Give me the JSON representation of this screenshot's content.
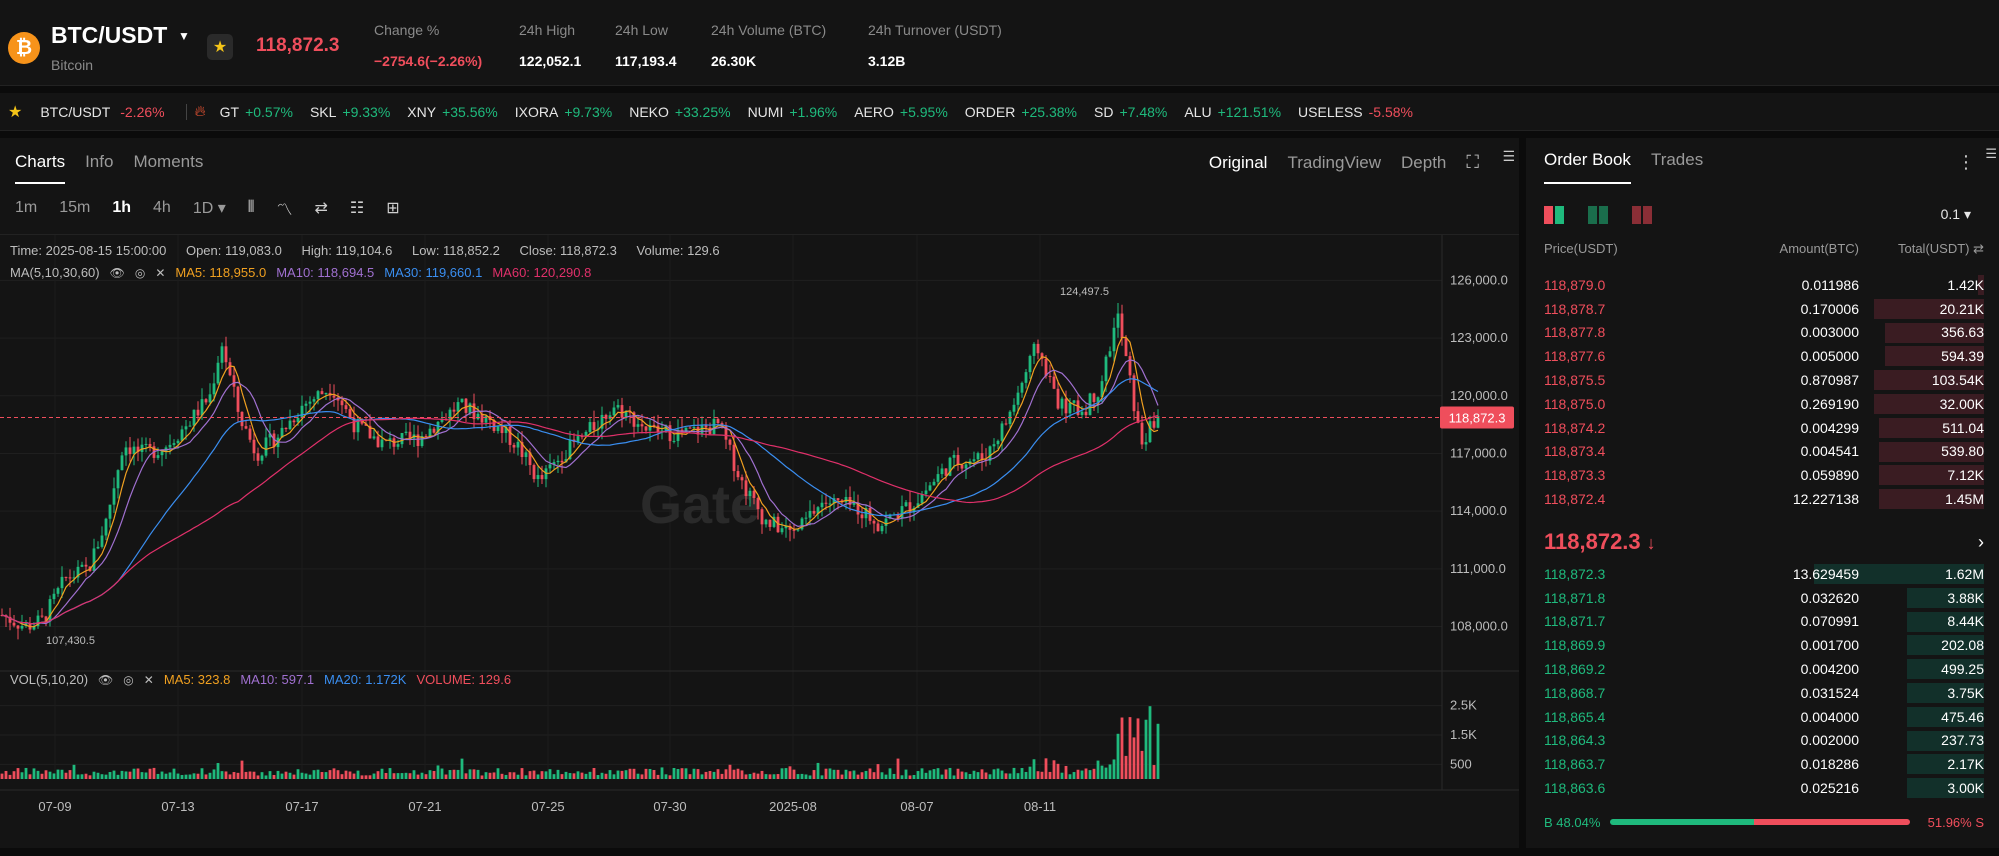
{
  "header": {
    "pair": "BTC/USDT",
    "coin_name": "Bitcoin",
    "coin_symbol": "₿",
    "last_price": "118,872.3",
    "stats": [
      {
        "label": "Change %",
        "value": "−2754.6(−2.26%)",
        "color": "#ef4e5c"
      },
      {
        "label": "24h High",
        "value": "122,052.1"
      },
      {
        "label": "24h Low",
        "value": "117,193.4"
      },
      {
        "label": "24h Volume (BTC)",
        "value": "26.30K"
      },
      {
        "label": "24h Turnover (USDT)",
        "value": "3.12B"
      }
    ]
  },
  "ticker": {
    "pinned": {
      "symbol": "BTC/USDT",
      "change": "-2.26%",
      "dir": "down"
    },
    "items": [
      {
        "symbol": "GT",
        "change": "+0.57%",
        "dir": "up"
      },
      {
        "symbol": "SKL",
        "change": "+9.33%",
        "dir": "up"
      },
      {
        "symbol": "XNY",
        "change": "+35.56%",
        "dir": "up"
      },
      {
        "symbol": "IXORA",
        "change": "+9.73%",
        "dir": "up"
      },
      {
        "symbol": "NEKO",
        "change": "+33.25%",
        "dir": "up"
      },
      {
        "symbol": "NUMI",
        "change": "+1.96%",
        "dir": "up"
      },
      {
        "symbol": "AERO",
        "change": "+5.95%",
        "dir": "up"
      },
      {
        "symbol": "ORDER",
        "change": "+25.38%",
        "dir": "up"
      },
      {
        "symbol": "SD",
        "change": "+7.48%",
        "dir": "up"
      },
      {
        "symbol": "ALU",
        "change": "+121.51%",
        "dir": "up"
      },
      {
        "symbol": "USELESS",
        "change": "-5.58%",
        "dir": "down"
      }
    ]
  },
  "chart_panel": {
    "tabs": [
      "Charts",
      "Info",
      "Moments"
    ],
    "active_tab": "Charts",
    "views": [
      "Original",
      "TradingView",
      "Depth"
    ],
    "active_view": "Original",
    "timeframes": [
      "1m",
      "15m",
      "1h",
      "4h",
      "1D ▾"
    ],
    "active_timeframe": "1h",
    "info": {
      "time": "Time: 2025-08-15 15:00:00",
      "open": "Open: 119,083.0",
      "high": "High: 119,104.6",
      "low": "Low: 118,852.2",
      "close": "Close: 118,872.3",
      "volume": "Volume: 129.6"
    },
    "ma_label": "MA(5,10,30,60)",
    "ma_values": [
      {
        "text": "MA5: 118,955.0",
        "color": "#f0a020"
      },
      {
        "text": "MA10: 118,694.5",
        "color": "#a070d0"
      },
      {
        "text": "MA30: 119,660.1",
        "color": "#3a8ef0"
      },
      {
        "text": "MA60: 120,290.8",
        "color": "#e0306a"
      }
    ],
    "vol_label": "VOL(5,10,20)",
    "vol_values": [
      {
        "text": "MA5: 323.8",
        "color": "#f0a020"
      },
      {
        "text": "MA10: 597.1",
        "color": "#a070d0"
      },
      {
        "text": "MA20: 1.172K",
        "color": "#3a8ef0"
      },
      {
        "text": "VOLUME: 129.6",
        "color": "#ef4e5c"
      }
    ],
    "watermark": "Gate"
  },
  "chart_data": {
    "type": "candlestick",
    "price_ticks": [
      "126,000.0",
      "123,000.0",
      "120,000.0",
      "117,000.0",
      "114,000.0",
      "111,000.0",
      "108,000.0"
    ],
    "price_tick_values": [
      126000,
      123000,
      120000,
      117000,
      114000,
      111000,
      108000
    ],
    "price_range": [
      106000,
      126800
    ],
    "volume_ticks": [
      "2.5K",
      "1.5K",
      "500"
    ],
    "volume_tick_values": [
      2500,
      1500,
      500
    ],
    "volume_range": [
      0,
      3200
    ],
    "x_ticks": [
      "07-09",
      "07-13",
      "07-17",
      "07-21",
      "07-25",
      "07-30",
      "2025-08",
      "08-07",
      "08-11"
    ],
    "current_price": "118,872.3",
    "current_price_value": 118872.3,
    "high_annotation": "124,497.5",
    "low_annotation": "107,430.5",
    "price_path": [
      {
        "x": 0.0,
        "p": 108600
      },
      {
        "x": 0.02,
        "p": 108000
      },
      {
        "x": 0.035,
        "p": 108300
      },
      {
        "x": 0.055,
        "p": 110500
      },
      {
        "x": 0.075,
        "p": 111000
      },
      {
        "x": 0.09,
        "p": 113500
      },
      {
        "x": 0.105,
        "p": 117500
      },
      {
        "x": 0.12,
        "p": 117000
      },
      {
        "x": 0.14,
        "p": 117300
      },
      {
        "x": 0.16,
        "p": 118500
      },
      {
        "x": 0.18,
        "p": 120000
      },
      {
        "x": 0.19,
        "p": 122800
      },
      {
        "x": 0.205,
        "p": 119000
      },
      {
        "x": 0.22,
        "p": 117000
      },
      {
        "x": 0.24,
        "p": 118000
      },
      {
        "x": 0.26,
        "p": 119500
      },
      {
        "x": 0.285,
        "p": 120500
      },
      {
        "x": 0.305,
        "p": 118500
      },
      {
        "x": 0.33,
        "p": 117500
      },
      {
        "x": 0.36,
        "p": 117800
      },
      {
        "x": 0.395,
        "p": 119500
      },
      {
        "x": 0.42,
        "p": 118800
      },
      {
        "x": 0.445,
        "p": 117500
      },
      {
        "x": 0.465,
        "p": 115500
      },
      {
        "x": 0.485,
        "p": 117000
      },
      {
        "x": 0.505,
        "p": 118000
      },
      {
        "x": 0.53,
        "p": 119500
      },
      {
        "x": 0.56,
        "p": 118200
      },
      {
        "x": 0.59,
        "p": 118000
      },
      {
        "x": 0.62,
        "p": 118500
      },
      {
        "x": 0.64,
        "p": 115500
      },
      {
        "x": 0.66,
        "p": 113500
      },
      {
        "x": 0.685,
        "p": 112800
      },
      {
        "x": 0.71,
        "p": 114500
      },
      {
        "x": 0.74,
        "p": 114200
      },
      {
        "x": 0.76,
        "p": 113300
      },
      {
        "x": 0.79,
        "p": 114500
      },
      {
        "x": 0.82,
        "p": 116500
      },
      {
        "x": 0.85,
        "p": 116800
      },
      {
        "x": 0.87,
        "p": 118800
      },
      {
        "x": 0.895,
        "p": 122600
      },
      {
        "x": 0.915,
        "p": 119500
      },
      {
        "x": 0.935,
        "p": 119200
      },
      {
        "x": 0.95,
        "p": 120500
      },
      {
        "x": 0.965,
        "p": 124200
      },
      {
        "x": 0.975,
        "p": 121000
      },
      {
        "x": 0.985,
        "p": 117500
      },
      {
        "x": 1.0,
        "p": 118900
      }
    ]
  },
  "orderbook": {
    "tabs": [
      "Order Book",
      "Trades"
    ],
    "active_tab": "Order Book",
    "precision": "0.1 ▾",
    "headers": [
      "Price(USDT)",
      "Amount(BTC)",
      "Total(USDT) ⇄"
    ],
    "asks": [
      {
        "price": "118,879.0",
        "amount": "0.011986",
        "total": "1.42K",
        "depth": 0.05
      },
      {
        "price": "118,878.7",
        "amount": "0.170006",
        "total": "20.21K",
        "depth": 1.0
      },
      {
        "price": "118,877.8",
        "amount": "0.003000",
        "total": "356.63",
        "depth": 0.9
      },
      {
        "price": "118,877.6",
        "amount": "0.005000",
        "total": "594.39",
        "depth": 0.9
      },
      {
        "price": "118,875.5",
        "amount": "0.870987",
        "total": "103.54K",
        "depth": 1.0
      },
      {
        "price": "118,875.0",
        "amount": "0.269190",
        "total": "32.00K",
        "depth": 1.0
      },
      {
        "price": "118,874.2",
        "amount": "0.004299",
        "total": "511.04",
        "depth": 0.95
      },
      {
        "price": "118,873.4",
        "amount": "0.004541",
        "total": "539.80",
        "depth": 0.95
      },
      {
        "price": "118,873.3",
        "amount": "0.059890",
        "total": "7.12K",
        "depth": 0.95
      },
      {
        "price": "118,872.4",
        "amount": "12.227138",
        "total": "1.45M",
        "depth": 0.95
      }
    ],
    "mid_price": "118,872.3",
    "mid_arrow": "↓",
    "bids": [
      {
        "price": "118,872.3",
        "amount": "13.629459",
        "total": "1.62M",
        "depth": 1.0
      },
      {
        "price": "118,871.8",
        "amount": "0.032620",
        "total": "3.88K",
        "depth": 0.7
      },
      {
        "price": "118,871.7",
        "amount": "0.070991",
        "total": "8.44K",
        "depth": 0.7
      },
      {
        "price": "118,869.9",
        "amount": "0.001700",
        "total": "202.08",
        "depth": 0.7
      },
      {
        "price": "118,869.2",
        "amount": "0.004200",
        "total": "499.25",
        "depth": 0.7
      },
      {
        "price": "118,868.7",
        "amount": "0.031524",
        "total": "3.75K",
        "depth": 0.7
      },
      {
        "price": "118,865.4",
        "amount": "0.004000",
        "total": "475.46",
        "depth": 0.7
      },
      {
        "price": "118,864.3",
        "amount": "0.002000",
        "total": "237.73",
        "depth": 0.7
      },
      {
        "price": "118,863.7",
        "amount": "0.018286",
        "total": "2.17K",
        "depth": 0.7
      },
      {
        "price": "118,863.6",
        "amount": "0.025216",
        "total": "3.00K",
        "depth": 0.7
      }
    ],
    "buy_ratio_label": "B 48.04%",
    "sell_ratio_label": "51.96% S",
    "buy_ratio": 0.4804
  },
  "colors": {
    "up": "#1fba7d",
    "down": "#ef4e5c",
    "accent": "#f5c518"
  }
}
